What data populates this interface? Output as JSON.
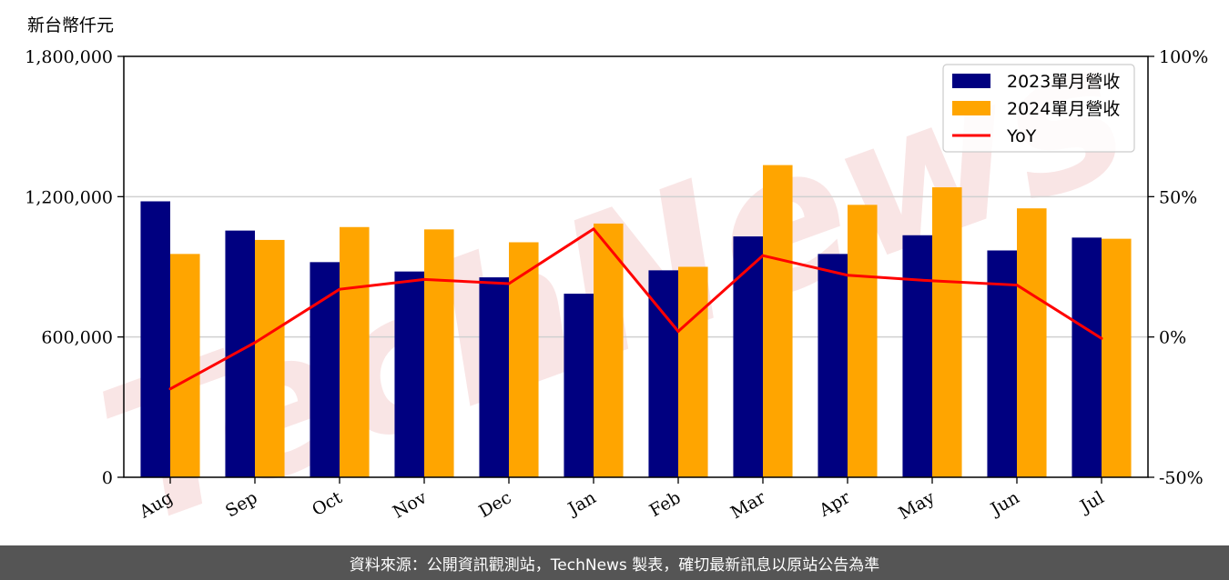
{
  "chart_data": {
    "type": "bar",
    "unit_label": "新台幣仟元",
    "categories": [
      "Aug",
      "Sep",
      "Oct",
      "Nov",
      "Dec",
      "Jan",
      "Feb",
      "Mar",
      "Apr",
      "May",
      "Jun",
      "Jul"
    ],
    "series": [
      {
        "name": "2023單月營收",
        "type": "bar",
        "axis": "left",
        "color": "#000080",
        "values": [
          1180000,
          1055000,
          920000,
          880000,
          855000,
          785000,
          885000,
          1030000,
          955000,
          1035000,
          970000,
          1025000
        ]
      },
      {
        "name": "2024單月營收",
        "type": "bar",
        "axis": "left",
        "color": "#FFA500",
        "values": [
          955000,
          1015000,
          1070000,
          1060000,
          1005000,
          1085000,
          900000,
          1335000,
          1165000,
          1240000,
          1150000,
          1020000
        ]
      },
      {
        "name": "YoY",
        "type": "line",
        "axis": "right",
        "color": "#FF0000",
        "values": [
          -18.5,
          -2.0,
          17.0,
          20.5,
          19.0,
          38.5,
          2.0,
          29.0,
          22.0,
          20.0,
          18.5,
          -0.5
        ]
      }
    ],
    "y_left": {
      "range": [
        0,
        1800000
      ],
      "ticks": [
        "0",
        "600,000",
        "1,200,000",
        "1,800,000"
      ]
    },
    "y_right": {
      "range": [
        -50,
        100
      ],
      "ticks": [
        "-50%",
        "0%",
        "50%",
        "100%"
      ]
    },
    "grid": "horizontal",
    "legend_position": "top-right"
  },
  "watermark": "TechNews",
  "footer": "資料來源：公開資訊觀測站，TechNews 製表，確切最新訊息以原站公告為準"
}
